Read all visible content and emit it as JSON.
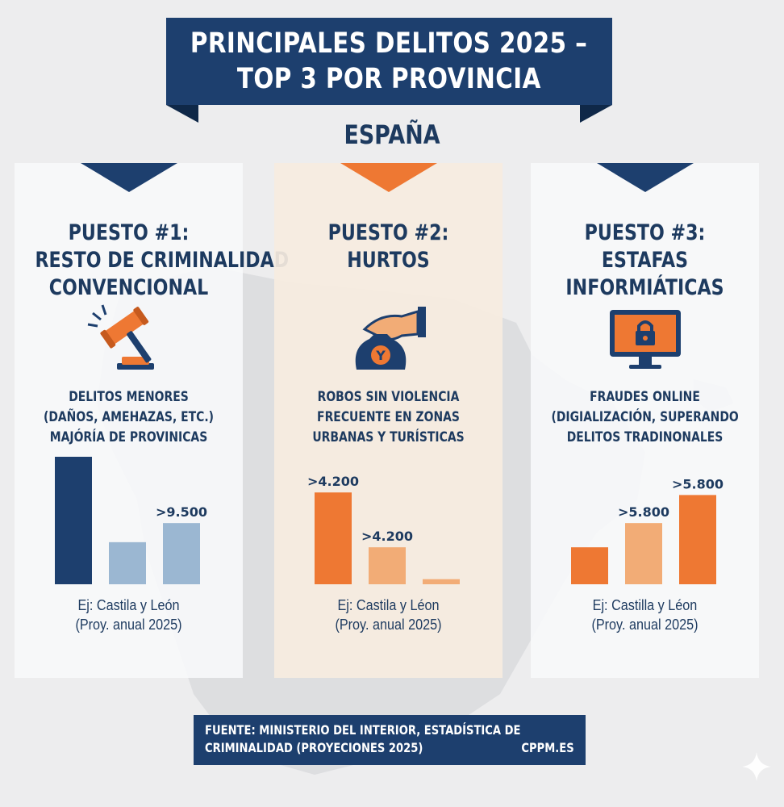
{
  "header": {
    "title_line1": "PRINCIPALES DELITOS 2025 –",
    "title_line2": "TOP 3 POR PROVINCIA",
    "country": "ESPAÑA"
  },
  "colors": {
    "navy": "#1d3f6e",
    "light_blue": "#9bb7d2",
    "orange": "#ee7833",
    "light_orange": "#f2ac76"
  },
  "panels": [
    {
      "rank_line1": "PUESTO #1:",
      "rank_line2": "RESTO DE CRIMINALIDAD",
      "rank_line3": "CONVENCIONAL",
      "icon": "gavel-icon",
      "desc_line1": "DELITOS MENORES",
      "desc_line2": "(DAÑOS, AMEHAZAS, ETC.)",
      "desc_line3": "MAJÓRÍA DE PROVINICAS",
      "example_line1": "Ej: Castila y León",
      "example_line2": "(Proy. anual 2025)"
    },
    {
      "rank_line1": "PUESTO #2:",
      "rank_line2": "HURTOS",
      "rank_line3": "",
      "icon": "hand-money-bag-icon",
      "desc_line1": "ROBOS SIN VIOLENCIA",
      "desc_line2": "FRECUENTE EN ZONAS",
      "desc_line3": "URBANAS Y TURÍSTICAS",
      "example_line1": "Ej: Castila y Léon",
      "example_line2": "(Proy. anual 2025)"
    },
    {
      "rank_line1": "PUESTO #3:",
      "rank_line2": "ESTAFAS",
      "rank_line3": "INFORMIÁTICAS",
      "icon": "monitor-lock-icon",
      "desc_line1": "FRAUDES ONLINE",
      "desc_line2": "(DIGIALIZACIÓN, SUPERANDO",
      "desc_line3": "DELITOS TRADINONALES",
      "example_line1": "Ej: Castilla y Léon",
      "example_line2": "(Proy. anual 2025)"
    }
  ],
  "chart_data": [
    {
      "type": "bar",
      "title": "",
      "values": [
        10000,
        3300,
        4800
      ],
      "labels": [
        "",
        "",
        ">9.500"
      ],
      "colors": [
        "#1d3f6e",
        "#9bb7d2",
        "#9bb7d2"
      ]
    },
    {
      "type": "bar",
      "title": "",
      "values": [
        7200,
        2900,
        400
      ],
      "labels": [
        ">4.200",
        ">4.200",
        ""
      ],
      "colors": [
        "#ee7833",
        "#f2ac76",
        "#f2ac76"
      ]
    },
    {
      "type": "bar",
      "title": "",
      "values": [
        2900,
        4800,
        7000
      ],
      "labels": [
        "",
        ">5.800",
        ">5.800"
      ],
      "colors": [
        "#ee7833",
        "#f2ac76",
        "#ee7833"
      ]
    }
  ],
  "footer": {
    "source_line1": "FUENTE: MINISTERIO DEL INTERIOR, ESTADÍSTICA DE",
    "source_line2": "CRIMINALIDAD (PROYECIONES 2025)",
    "site": "CPPM.ES"
  }
}
